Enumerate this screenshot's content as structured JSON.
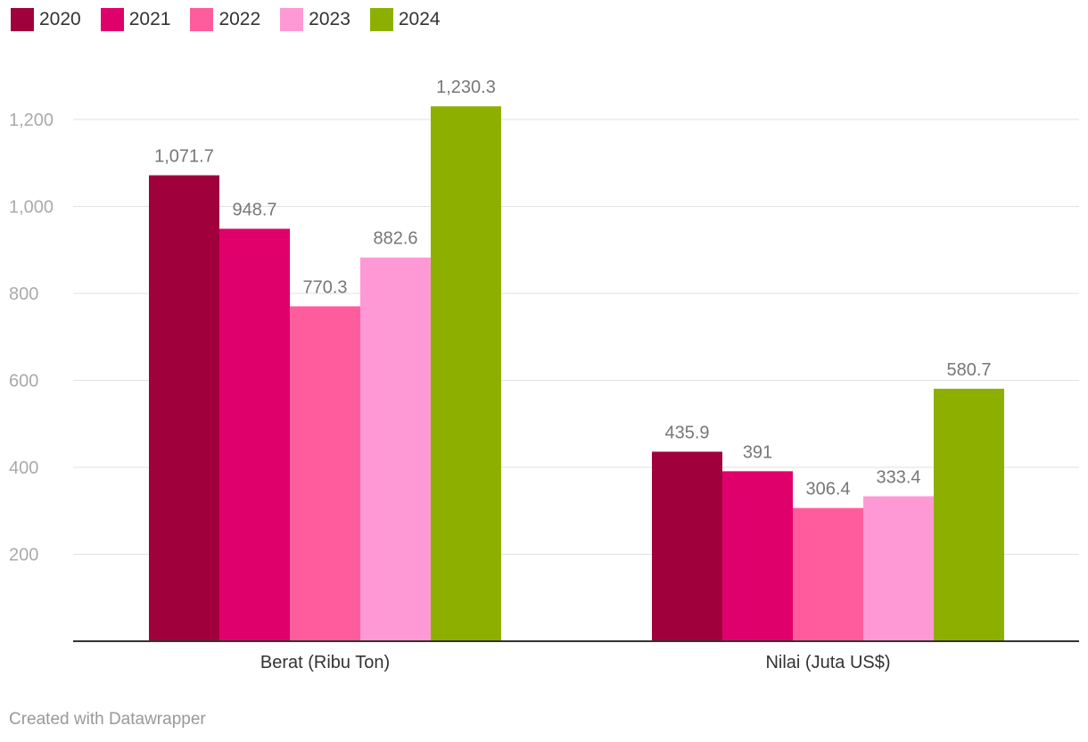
{
  "chart_data": {
    "type": "bar",
    "categories": [
      "Berat (Ribu Ton)",
      "Nilai (Juta US$)"
    ],
    "series": [
      {
        "name": "2020",
        "color": "#a0003c",
        "values": [
          1071.7,
          435.9
        ],
        "labels": [
          "1,071.7",
          "435.9"
        ]
      },
      {
        "name": "2021",
        "color": "#e0006b",
        "values": [
          948.7,
          391
        ],
        "labels": [
          "948.7",
          "391"
        ]
      },
      {
        "name": "2022",
        "color": "#ff5c9e",
        "values": [
          770.3,
          306.4
        ],
        "labels": [
          "770.3",
          "306.4"
        ]
      },
      {
        "name": "2023",
        "color": "#ff99d6",
        "values": [
          882.6,
          333.4
        ],
        "labels": [
          "882.6",
          "333.4"
        ]
      },
      {
        "name": "2024",
        "color": "#8db000",
        "values": [
          1230.3,
          580.7
        ],
        "labels": [
          "1,230.3",
          "580.7"
        ]
      }
    ],
    "y_ticks": [
      200,
      400,
      600,
      800,
      1000,
      1200
    ],
    "y_tick_labels": [
      "200",
      "400",
      "600",
      "800",
      "1,000",
      "1,200"
    ],
    "ylim": [
      0,
      1300
    ],
    "grid": true,
    "legend_position": "top-left"
  },
  "footer": {
    "credit": "Created with Datawrapper"
  }
}
